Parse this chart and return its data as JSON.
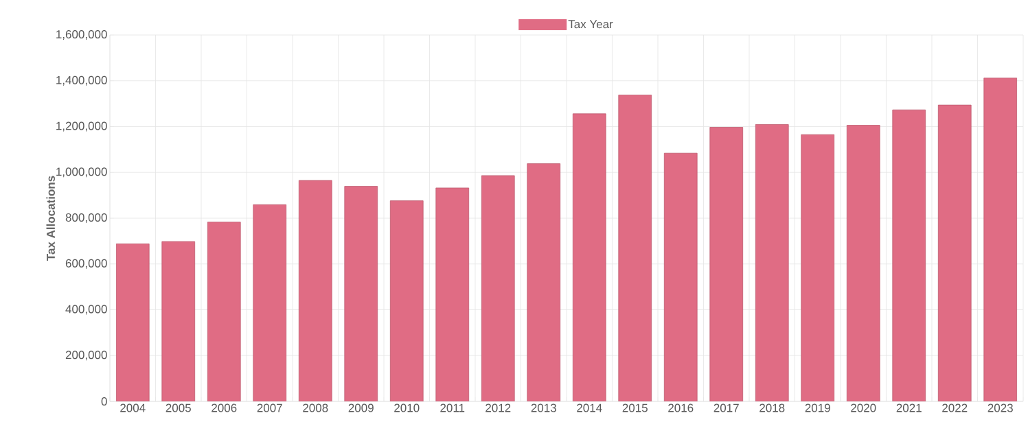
{
  "chart_data": {
    "type": "bar",
    "ylabel": "Tax Allocations",
    "categories": [
      "2004",
      "2005",
      "2006",
      "2007",
      "2008",
      "2009",
      "2010",
      "2011",
      "2012",
      "2013",
      "2014",
      "2015",
      "2016",
      "2017",
      "2018",
      "2019",
      "2020",
      "2021",
      "2022",
      "2023"
    ],
    "series": [
      {
        "name": "Tax Year",
        "color": "#e06c84",
        "values": [
          688000,
          698000,
          783000,
          859000,
          965000,
          939000,
          876000,
          932000,
          986000,
          1038000,
          1256000,
          1338000,
          1084000,
          1197000,
          1209000,
          1165000,
          1206000,
          1273000,
          1294000,
          1412000
        ]
      }
    ],
    "ylim": [
      0,
      1600000
    ],
    "yticks": [
      0,
      {
        "value": 200000,
        "label": "200,000"
      },
      {
        "value": 400000,
        "label": "400,000"
      },
      {
        "value": 600000,
        "label": "600,000"
      },
      {
        "value": 800000,
        "label": "800,000"
      },
      {
        "value": 1000000,
        "label": "1,000,000"
      },
      {
        "value": 1200000,
        "label": "1,200,000"
      },
      {
        "value": 1400000,
        "label": "1,400,000"
      },
      {
        "value": 1600000,
        "label": "1,600,000"
      }
    ],
    "grid": true,
    "legend": "top"
  }
}
